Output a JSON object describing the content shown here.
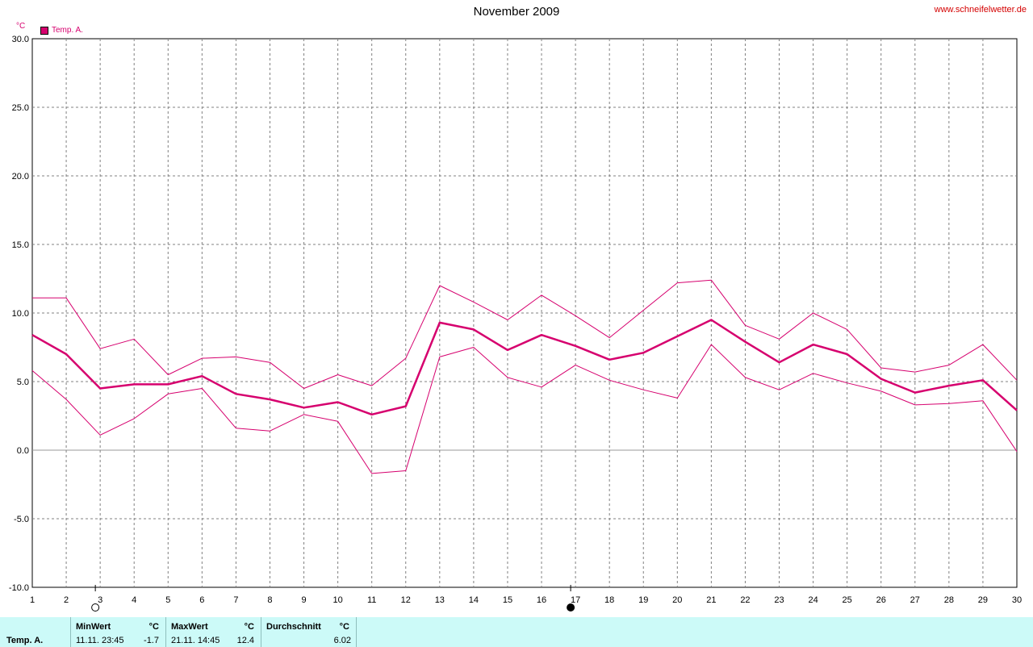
{
  "header": {
    "title": "November 2009",
    "site": "www.schneifelwetter.de",
    "unit": "°C",
    "legend_label": "Temp. A."
  },
  "colors": {
    "series": "#d6006e",
    "grid": "#808080",
    "table_bg": "#ccfaf8"
  },
  "chart_data": {
    "type": "line",
    "title": "November 2009",
    "ylabel": "°C",
    "xlim": [
      1,
      30
    ],
    "ylim": [
      -10,
      30
    ],
    "ytick_labels": [
      "30.0",
      "25.0",
      "20.0",
      "15.0",
      "10.0",
      "5.0",
      "0.0",
      "-5.0",
      "-10.0"
    ],
    "x": [
      1,
      2,
      3,
      4,
      5,
      6,
      7,
      8,
      9,
      10,
      11,
      12,
      13,
      14,
      15,
      16,
      17,
      18,
      19,
      20,
      21,
      22,
      23,
      24,
      25,
      26,
      27,
      28,
      29,
      30
    ],
    "grid": true,
    "legend_position": "top-left",
    "series": [
      {
        "name": "Temp. A.",
        "role": "mean",
        "values": [
          8.4,
          7.0,
          4.5,
          4.8,
          4.8,
          5.4,
          4.1,
          3.7,
          3.1,
          3.5,
          2.6,
          3.2,
          9.3,
          8.8,
          7.3,
          8.4,
          7.6,
          6.6,
          7.1,
          8.3,
          9.5,
          7.9,
          6.4,
          7.7,
          7.0,
          5.2,
          4.2,
          4.7,
          5.1,
          2.9
        ]
      },
      {
        "role": "max",
        "values": [
          11.1,
          11.1,
          7.4,
          8.1,
          5.5,
          6.7,
          6.8,
          6.4,
          4.5,
          5.5,
          4.7,
          6.7,
          12.0,
          10.8,
          9.5,
          11.3,
          9.8,
          8.2,
          10.2,
          12.2,
          12.4,
          9.1,
          8.1,
          10.0,
          8.8,
          6.0,
          5.7,
          6.2,
          7.7,
          5.1
        ]
      },
      {
        "role": "min",
        "values": [
          5.8,
          3.7,
          1.1,
          2.3,
          4.1,
          4.5,
          1.6,
          1.4,
          2.6,
          2.1,
          -1.7,
          -1.5,
          6.8,
          7.5,
          5.3,
          4.6,
          6.2,
          5.1,
          4.4,
          3.8,
          7.7,
          5.3,
          4.4,
          5.6,
          4.9,
          4.3,
          3.3,
          3.4,
          3.6,
          -0.1
        ]
      }
    ],
    "markers": [
      {
        "x": 3,
        "type": "full-moon"
      },
      {
        "x": 17,
        "type": "new-moon"
      }
    ]
  },
  "stats": {
    "row_label": "Temp. A.",
    "min": {
      "label": "MinWert",
      "unit": "°C",
      "date": "11.11.  23:45",
      "value": "-1.7"
    },
    "max": {
      "label": "MaxWert",
      "unit": "°C",
      "date": "21.11.  14:45",
      "value": "12.4"
    },
    "avg": {
      "label": "Durchschnitt",
      "unit": "°C",
      "value": "6.02"
    }
  }
}
